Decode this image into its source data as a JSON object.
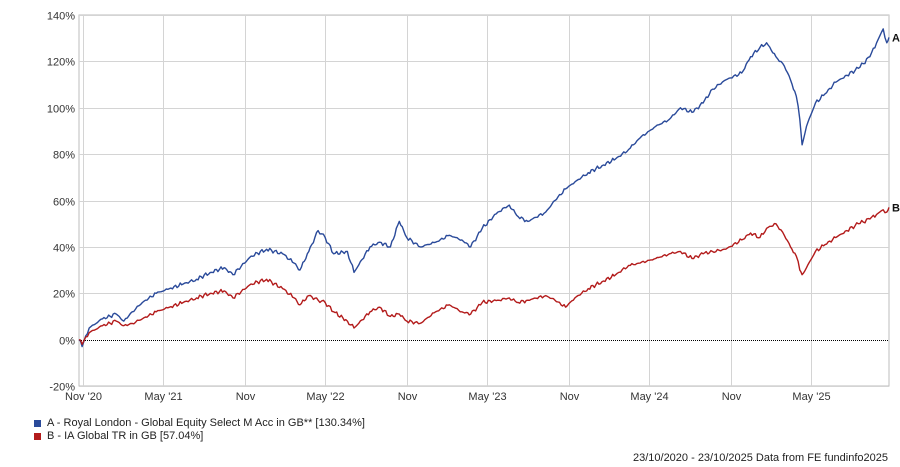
{
  "chart_data": {
    "type": "line",
    "title": "",
    "xlabel": "",
    "ylabel": "",
    "ylim": [
      -20,
      140
    ],
    "yticks": [
      -20,
      0,
      20,
      40,
      60,
      80,
      100,
      120,
      140
    ],
    "y_tick_labels": [
      "-20%",
      "0%",
      "20%",
      "40%",
      "60%",
      "80%",
      "100%",
      "120%",
      "140%"
    ],
    "x_range": [
      "2020-10-23",
      "2025-10-23"
    ],
    "x_ticks": [
      {
        "date": "2020-11-01",
        "label": "Nov '20"
      },
      {
        "date": "2021-05-01",
        "label": "May '21"
      },
      {
        "date": "2021-11-01",
        "label": "Nov"
      },
      {
        "date": "2022-05-01",
        "label": "May '22"
      },
      {
        "date": "2022-11-01",
        "label": "Nov"
      },
      {
        "date": "2023-05-01",
        "label": "May '23"
      },
      {
        "date": "2023-11-01",
        "label": "Nov"
      },
      {
        "date": "2024-05-01",
        "label": "May '24"
      },
      {
        "date": "2024-11-01",
        "label": "Nov"
      },
      {
        "date": "2025-05-01",
        "label": "May '25"
      }
    ],
    "grid": true,
    "zero_line": true,
    "legend_position": "bottom-left",
    "series": [
      {
        "key": "A",
        "name": "A - Royal London - Global Equity Select M Acc in GB** [130.34%]",
        "color": "#2a4a9a",
        "points": [
          [
            "2020-10-23",
            0
          ],
          [
            "2020-10-30",
            -3
          ],
          [
            "2020-11-15",
            5
          ],
          [
            "2020-12-15",
            9
          ],
          [
            "2021-01-15",
            11
          ],
          [
            "2021-02-01",
            8
          ],
          [
            "2021-02-20",
            12
          ],
          [
            "2021-03-15",
            16
          ],
          [
            "2021-04-15",
            20
          ],
          [
            "2021-05-15",
            22
          ],
          [
            "2021-06-15",
            24
          ],
          [
            "2021-07-15",
            26
          ],
          [
            "2021-08-15",
            29
          ],
          [
            "2021-09-15",
            31
          ],
          [
            "2021-10-05",
            28
          ],
          [
            "2021-11-15",
            36
          ],
          [
            "2021-12-20",
            39
          ],
          [
            "2022-01-25",
            37
          ],
          [
            "2022-02-20",
            33
          ],
          [
            "2022-03-05",
            30
          ],
          [
            "2022-03-25",
            38
          ],
          [
            "2022-04-15",
            47
          ],
          [
            "2022-05-01",
            44
          ],
          [
            "2022-05-20",
            37
          ],
          [
            "2022-06-20",
            38
          ],
          [
            "2022-07-05",
            29
          ],
          [
            "2022-08-10",
            40
          ],
          [
            "2022-09-01",
            42
          ],
          [
            "2022-09-25",
            40
          ],
          [
            "2022-10-15",
            51
          ],
          [
            "2022-11-01",
            44
          ],
          [
            "2022-12-01",
            40
          ],
          [
            "2023-01-05",
            42
          ],
          [
            "2023-02-05",
            45
          ],
          [
            "2023-03-05",
            43
          ],
          [
            "2023-03-25",
            40
          ],
          [
            "2023-04-20",
            48
          ],
          [
            "2023-05-25",
            55
          ],
          [
            "2023-06-20",
            58
          ],
          [
            "2023-07-10",
            53
          ],
          [
            "2023-08-01",
            51
          ],
          [
            "2023-09-10",
            55
          ],
          [
            "2023-10-01",
            60
          ],
          [
            "2023-10-25",
            65
          ],
          [
            "2023-11-15",
            68
          ],
          [
            "2023-12-15",
            72
          ],
          [
            "2024-01-15",
            75
          ],
          [
            "2024-02-15",
            78
          ],
          [
            "2024-03-15",
            82
          ],
          [
            "2024-04-10",
            87
          ],
          [
            "2024-05-15",
            92
          ],
          [
            "2024-06-15",
            95
          ],
          [
            "2024-07-10",
            100
          ],
          [
            "2024-08-05",
            98
          ],
          [
            "2024-08-30",
            102
          ],
          [
            "2024-09-20",
            108
          ],
          [
            "2024-10-20",
            112
          ],
          [
            "2024-11-25",
            115
          ],
          [
            "2024-12-15",
            122
          ],
          [
            "2025-01-05",
            126
          ],
          [
            "2025-01-20",
            128
          ],
          [
            "2025-02-10",
            122
          ],
          [
            "2025-03-01",
            118
          ],
          [
            "2025-03-15",
            112
          ],
          [
            "2025-03-28",
            105
          ],
          [
            "2025-04-05",
            95
          ],
          [
            "2025-04-10",
            84
          ],
          [
            "2025-04-20",
            92
          ],
          [
            "2025-05-10",
            102
          ],
          [
            "2025-06-01",
            106
          ],
          [
            "2025-06-25",
            111
          ],
          [
            "2025-07-20",
            114
          ],
          [
            "2025-08-15",
            117
          ],
          [
            "2025-09-10",
            122
          ],
          [
            "2025-09-25",
            128
          ],
          [
            "2025-10-10",
            134
          ],
          [
            "2025-10-18",
            128
          ],
          [
            "2025-10-23",
            130.34
          ]
        ],
        "end_label": "A"
      },
      {
        "key": "B",
        "name": "B - IA Global TR in GB [57.04%]",
        "color": "#b31b1b",
        "points": [
          [
            "2020-10-23",
            0
          ],
          [
            "2020-10-30",
            -2
          ],
          [
            "2020-11-15",
            3
          ],
          [
            "2020-12-15",
            6
          ],
          [
            "2021-01-15",
            8
          ],
          [
            "2021-02-01",
            6
          ],
          [
            "2021-02-20",
            7
          ],
          [
            "2021-03-15",
            9
          ],
          [
            "2021-04-15",
            12
          ],
          [
            "2021-05-15",
            14
          ],
          [
            "2021-06-15",
            16
          ],
          [
            "2021-07-15",
            18
          ],
          [
            "2021-08-15",
            20
          ],
          [
            "2021-09-15",
            21
          ],
          [
            "2021-10-05",
            18
          ],
          [
            "2021-11-15",
            24
          ],
          [
            "2021-12-20",
            26
          ],
          [
            "2022-01-25",
            22
          ],
          [
            "2022-02-20",
            18
          ],
          [
            "2022-03-05",
            15
          ],
          [
            "2022-03-25",
            19
          ],
          [
            "2022-04-15",
            17
          ],
          [
            "2022-05-01",
            16
          ],
          [
            "2022-05-20",
            12
          ],
          [
            "2022-06-20",
            8
          ],
          [
            "2022-07-05",
            5
          ],
          [
            "2022-08-10",
            12
          ],
          [
            "2022-09-01",
            14
          ],
          [
            "2022-09-25",
            10
          ],
          [
            "2022-10-15",
            11
          ],
          [
            "2022-11-01",
            8
          ],
          [
            "2022-12-01",
            7
          ],
          [
            "2023-01-05",
            12
          ],
          [
            "2023-02-05",
            15
          ],
          [
            "2023-03-05",
            12
          ],
          [
            "2023-03-25",
            11
          ],
          [
            "2023-04-20",
            16
          ],
          [
            "2023-05-25",
            17
          ],
          [
            "2023-06-20",
            18
          ],
          [
            "2023-07-10",
            16
          ],
          [
            "2023-08-01",
            17
          ],
          [
            "2023-09-10",
            19
          ],
          [
            "2023-10-01",
            17
          ],
          [
            "2023-10-25",
            14
          ],
          [
            "2023-11-15",
            18
          ],
          [
            "2023-12-15",
            22
          ],
          [
            "2024-01-15",
            25
          ],
          [
            "2024-02-15",
            28
          ],
          [
            "2024-03-15",
            32
          ],
          [
            "2024-04-10",
            33
          ],
          [
            "2024-05-15",
            35
          ],
          [
            "2024-06-15",
            37
          ],
          [
            "2024-07-10",
            38
          ],
          [
            "2024-08-05",
            35
          ],
          [
            "2024-08-30",
            37
          ],
          [
            "2024-09-20",
            38
          ],
          [
            "2024-10-20",
            39
          ],
          [
            "2024-11-25",
            43
          ],
          [
            "2024-12-15",
            46
          ],
          [
            "2025-01-05",
            44
          ],
          [
            "2025-01-20",
            48
          ],
          [
            "2025-02-10",
            50
          ],
          [
            "2025-03-01",
            45
          ],
          [
            "2025-03-15",
            40
          ],
          [
            "2025-03-28",
            36
          ],
          [
            "2025-04-05",
            30
          ],
          [
            "2025-04-10",
            28
          ],
          [
            "2025-04-20",
            31
          ],
          [
            "2025-05-10",
            38
          ],
          [
            "2025-06-01",
            41
          ],
          [
            "2025-06-25",
            44
          ],
          [
            "2025-07-20",
            47
          ],
          [
            "2025-08-15",
            50
          ],
          [
            "2025-09-10",
            52
          ],
          [
            "2025-09-25",
            54
          ],
          [
            "2025-10-10",
            56
          ],
          [
            "2025-10-18",
            55
          ],
          [
            "2025-10-23",
            57.04
          ]
        ],
        "end_label": "B"
      }
    ]
  },
  "footer": {
    "text": "23/10/2020 - 23/10/2025 Data from FE fundinfo2025"
  }
}
